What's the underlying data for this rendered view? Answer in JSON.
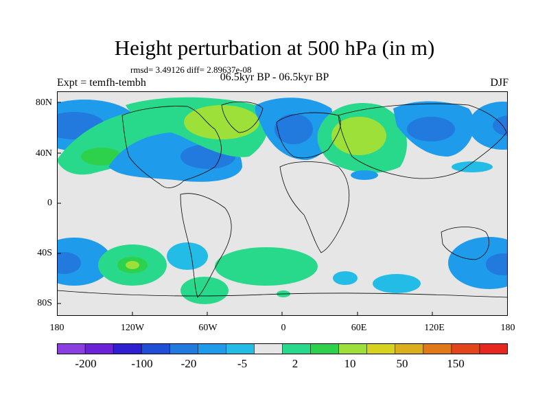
{
  "title": "Height perturbation at 500 hPa (in m)",
  "stats": "rmsd= 3.49126 diff= 2.89637e-08",
  "experiment": "Expt = temfh-tembh",
  "period": "06.5kyr BP - 06.5kyr BP",
  "season": "DJF",
  "lat_labels": [
    "80N",
    "40N",
    "0",
    "40S",
    "80S"
  ],
  "lon_labels": [
    "180",
    "120W",
    "60W",
    "0",
    "60E",
    "120E",
    "180"
  ],
  "colorbar": {
    "colors": [
      "#8b3fe0",
      "#6a22d8",
      "#2f1fd1",
      "#1f4fd6",
      "#2279de",
      "#1e9bea",
      "#23bce6",
      "#e6e6e6",
      "#28d98c",
      "#2ed14b",
      "#9de03a",
      "#d7d21f",
      "#dcae1c",
      "#e07a18",
      "#e3451b",
      "#e6261f"
    ],
    "labels": [
      "-200",
      "-100",
      "-20",
      "-5",
      "2",
      "10",
      "50",
      "150"
    ]
  },
  "chart_data": {
    "type": "map",
    "variable": "Height perturbation at 500 hPa (in m)",
    "region": "global",
    "lon_range": [
      -180,
      180
    ],
    "lat_range": [
      -90,
      90
    ],
    "contour_levels": [
      -200,
      -100,
      -20,
      -5,
      2,
      10,
      50,
      150
    ],
    "features": [
      {
        "lon": -170,
        "lat": 55,
        "value": -20
      },
      {
        "lon": -140,
        "lat": 45,
        "value": 10
      },
      {
        "lon": -85,
        "lat": 40,
        "value": -20
      },
      {
        "lon": -40,
        "lat": 65,
        "value": 10
      },
      {
        "lon": 10,
        "lat": 60,
        "value": -20
      },
      {
        "lon": 60,
        "lat": 50,
        "value": 10
      },
      {
        "lon": 120,
        "lat": 60,
        "value": -20
      },
      {
        "lon": 170,
        "lat": 65,
        "value": -20
      },
      {
        "lon": -175,
        "lat": -50,
        "value": -20
      },
      {
        "lon": -120,
        "lat": -50,
        "value": 10
      },
      {
        "lon": -75,
        "lat": -45,
        "value": -5
      },
      {
        "lon": -15,
        "lat": -50,
        "value": 2
      },
      {
        "lon": 45,
        "lat": -70,
        "value": -5
      },
      {
        "lon": 170,
        "lat": -50,
        "value": -20
      }
    ]
  }
}
